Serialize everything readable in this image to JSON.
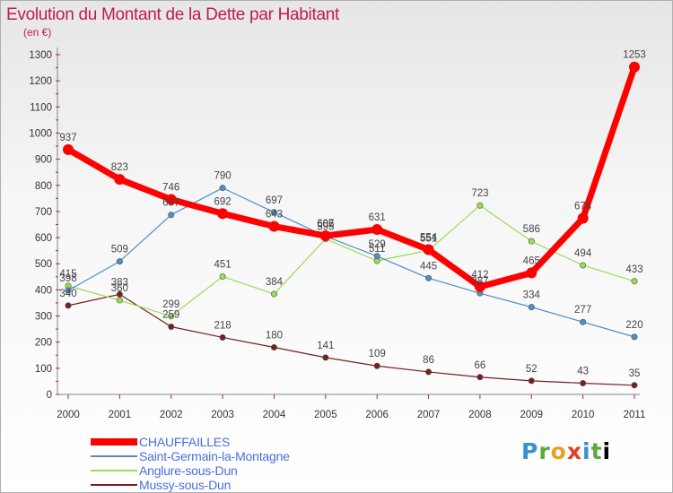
{
  "title": "Evolution du Montant de la Dette par Habitant",
  "unit_label": "(en €)",
  "logo_text": "Proxiti",
  "chart_data": {
    "type": "line",
    "x": [
      "2000",
      "2001",
      "2002",
      "2003",
      "2004",
      "2005",
      "2006",
      "2007",
      "2008",
      "2009",
      "2010",
      "2011"
    ],
    "ylim": [
      0,
      1300
    ],
    "yticks": [
      0,
      100,
      200,
      300,
      400,
      500,
      600,
      700,
      800,
      900,
      1000,
      1100,
      1200,
      1300
    ],
    "grid": false,
    "legend_position": "bottom-left",
    "series": [
      {
        "name": "CHAUFFAILLES",
        "color": "#ff0000",
        "values": [
          937,
          823,
          746,
          692,
          643,
          607,
          631,
          554,
          412,
          465,
          674,
          1253
        ]
      },
      {
        "name": "Saint-Germain-la-Montagne",
        "color": "#4f8ec9",
        "values": [
          398,
          509,
          687,
          790,
          697,
          605,
          529,
          445,
          387,
          334,
          277,
          220
        ]
      },
      {
        "name": "Anglure-sous-Dun",
        "color": "#99dd55",
        "values": [
          415,
          360,
          299,
          451,
          384,
          595,
          511,
          551,
          723,
          586,
          494,
          433
        ]
      },
      {
        "name": "Mussy-sous-Dun",
        "color": "#7a1e1e",
        "values": [
          340,
          383,
          259,
          218,
          180,
          141,
          109,
          86,
          66,
          52,
          43,
          35
        ]
      }
    ]
  }
}
